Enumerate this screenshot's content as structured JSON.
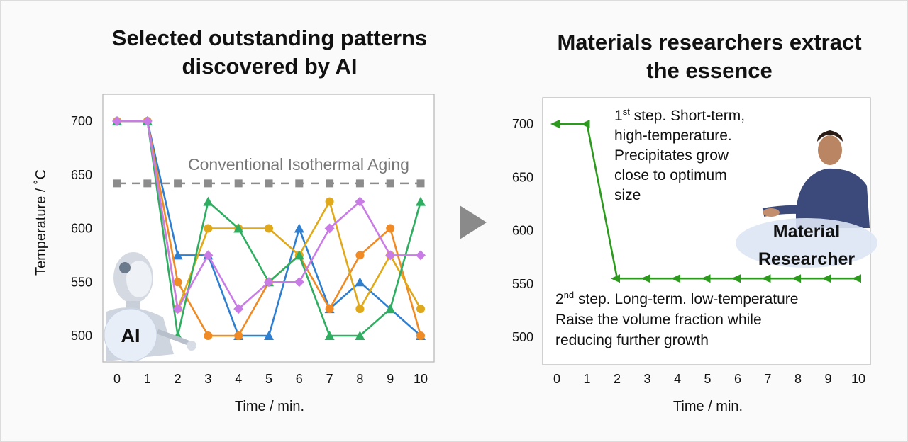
{
  "title_left": [
    "Selected outstanding patterns",
    "discovered by AI"
  ],
  "title_right": [
    "Materials researchers extract",
    "the essence"
  ],
  "chart_data": [
    {
      "type": "line",
      "title": "Selected outstanding patterns discovered by AI",
      "xlabel": "Time / min.",
      "ylabel": "Temperature / ˚C",
      "x": [
        0,
        1,
        2,
        3,
        4,
        5,
        6,
        7,
        8,
        9,
        10
      ],
      "xlim": [
        0,
        10
      ],
      "ylim": [
        475,
        725
      ],
      "yticks": [
        500,
        550,
        600,
        650,
        700
      ],
      "series": [
        {
          "name": "blue",
          "color": "#2f7fd0",
          "marker": "triangle",
          "values": [
            700,
            700,
            575,
            575,
            500,
            500,
            600,
            525,
            550,
            525,
            500
          ]
        },
        {
          "name": "orange",
          "color": "#f08a24",
          "marker": "circle",
          "values": [
            700,
            700,
            550,
            500,
            500,
            550,
            575,
            525,
            575,
            600,
            500
          ]
        },
        {
          "name": "gold",
          "color": "#e0a91c",
          "marker": "circle",
          "values": [
            700,
            700,
            525,
            600,
            600,
            600,
            575,
            625,
            525,
            575,
            525
          ]
        },
        {
          "name": "green",
          "color": "#2fae62",
          "marker": "triangle",
          "values": [
            700,
            700,
            500,
            625,
            600,
            550,
            575,
            500,
            500,
            525,
            625
          ]
        },
        {
          "name": "purple",
          "color": "#c97be6",
          "marker": "diamond",
          "values": [
            700,
            700,
            525,
            575,
            525,
            550,
            550,
            600,
            625,
            575,
            575
          ]
        },
        {
          "name": "Conventional Isothermal Aging",
          "color": "#8c8c8c",
          "marker": "square",
          "dashed": true,
          "values": [
            642,
            642,
            642,
            642,
            642,
            642,
            642,
            642,
            642,
            642,
            642
          ]
        }
      ],
      "annotation": "Conventional Isothermal Aging",
      "badge": "AI"
    },
    {
      "type": "line",
      "title": "Materials researchers extract the essence",
      "xlabel": "Time / min.",
      "ylabel": "",
      "x": [
        0,
        1,
        2,
        3,
        4,
        5,
        6,
        7,
        8,
        9,
        10
      ],
      "xlim": [
        0,
        10
      ],
      "ylim": [
        475,
        725
      ],
      "yticks": [
        500,
        550,
        600,
        650,
        700
      ],
      "series": [
        {
          "name": "two-step",
          "color": "#2c9a1c",
          "marker": "left-triangle",
          "values": [
            700,
            700,
            555,
            555,
            555,
            555,
            555,
            555,
            555,
            555,
            555
          ]
        }
      ],
      "note1": {
        "prefix": "1",
        "sup": "st",
        "line1": " step. Short-term,",
        "line2": "high-temperature.",
        "line3": "Precipitates grow",
        "line4": "close to optimum",
        "line5": "size"
      },
      "note2": {
        "prefix": "2",
        "sup": "nd",
        "line1": " step. Long-term. low-temperature",
        "line2": "Raise the volume fraction while",
        "line3": "reducing further growth"
      },
      "badge": [
        "Material",
        "Researcher"
      ]
    }
  ],
  "colors": {
    "arrow": "#8a8a8a",
    "frame": "#dcdcdc",
    "axis": "#222222"
  }
}
